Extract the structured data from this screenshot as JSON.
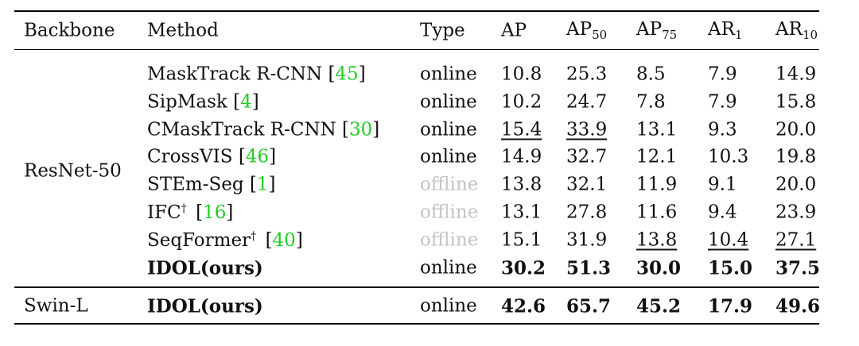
{
  "header": [
    "Backbone",
    "Method",
    "Type",
    "AP",
    {
      "text": "AP",
      "sub": "50"
    },
    {
      "text": "AP",
      "sub": "75"
    },
    {
      "text": "AR",
      "sub": "1"
    },
    {
      "text": "AR",
      "sub": "10"
    }
  ],
  "citation_brackets": [
    "[",
    "]"
  ],
  "groups": [
    {
      "backbone": "ResNet-50",
      "rows": [
        {
          "method": "MaskTrack R-CNN",
          "cite": "45",
          "type": "online",
          "values": [
            "10.8",
            "25.3",
            "8.5",
            "7.9",
            "14.9"
          ]
        },
        {
          "method": "SipMask",
          "cite": "4",
          "type": "online",
          "values": [
            "10.2",
            "24.7",
            "7.8",
            "7.9",
            "15.8"
          ]
        },
        {
          "method": "CMaskTrack R-CNN",
          "cite": "30",
          "type": "online",
          "values": [
            "15.4",
            "33.9",
            "13.1",
            "9.3",
            "20.0"
          ],
          "underline": [
            0,
            1
          ]
        },
        {
          "method": "CrossVIS",
          "cite": "46",
          "type": "online",
          "values": [
            "14.9",
            "32.7",
            "12.1",
            "10.3",
            "19.8"
          ]
        },
        {
          "method": "STEm-Seg",
          "cite": "1",
          "type": "offline",
          "dimmed": true,
          "values": [
            "13.8",
            "32.1",
            "11.9",
            "9.1",
            "20.0"
          ]
        },
        {
          "method": "IFC",
          "sup": "†",
          "cite": "16",
          "type": "offline",
          "dimmed": true,
          "values": [
            "13.1",
            "27.8",
            "11.6",
            "9.4",
            "23.9"
          ]
        },
        {
          "method": "SeqFormer",
          "sup": "†",
          "cite": "40",
          "type": "offline",
          "dimmed": true,
          "values": [
            "15.1",
            "31.9",
            "13.8",
            "10.4",
            "27.1"
          ],
          "underline": [
            2,
            3,
            4
          ]
        },
        {
          "method": "IDOL(ours)",
          "type": "online",
          "bold": true,
          "values": [
            "30.2",
            "51.3",
            "30.0",
            "15.0",
            "37.5"
          ]
        }
      ]
    },
    {
      "backbone": "Swin-L",
      "rows": [
        {
          "method": "IDOL(ours)",
          "type": "online",
          "bold": true,
          "values": [
            "42.6",
            "65.7",
            "45.2",
            "17.9",
            "49.6"
          ]
        }
      ]
    }
  ]
}
